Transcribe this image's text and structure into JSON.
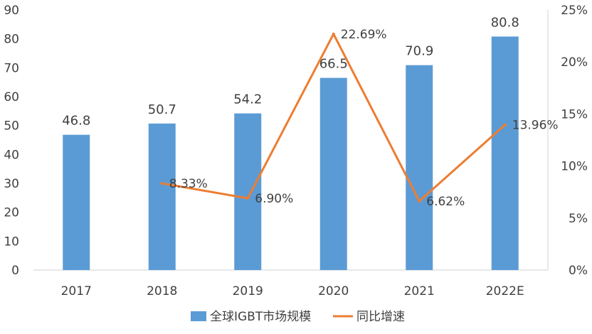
{
  "chart_data": {
    "type": "bar",
    "categories": [
      "2017",
      "2018",
      "2019",
      "2020",
      "2021",
      "2022E"
    ],
    "series": [
      {
        "name": "全球IGBT市场规模",
        "type": "bar",
        "axis": "left",
        "values": [
          46.8,
          50.7,
          54.2,
          66.5,
          70.9,
          80.8
        ],
        "labels": [
          "46.8",
          "50.7",
          "54.2",
          "66.5",
          "70.9",
          "80.8"
        ],
        "color": "#5b9bd5"
      },
      {
        "name": "同比增速",
        "type": "line",
        "axis": "right",
        "values": [
          null,
          8.33,
          6.9,
          22.69,
          6.62,
          13.96
        ],
        "labels": [
          "",
          "8.33%",
          "6.90%",
          "22.69%",
          "6.62%",
          "13.96%"
        ],
        "color": "#ed7d31"
      }
    ],
    "y_left": {
      "min": 0,
      "max": 90,
      "ticks": [
        "0",
        "10",
        "20",
        "30",
        "40",
        "50",
        "60",
        "70",
        "80",
        "90"
      ]
    },
    "y_right": {
      "min": 0,
      "max": 25,
      "ticks": [
        "0%",
        "5%",
        "10%",
        "15%",
        "20%",
        "25%"
      ]
    },
    "grid": false,
    "legend_position": "bottom"
  }
}
